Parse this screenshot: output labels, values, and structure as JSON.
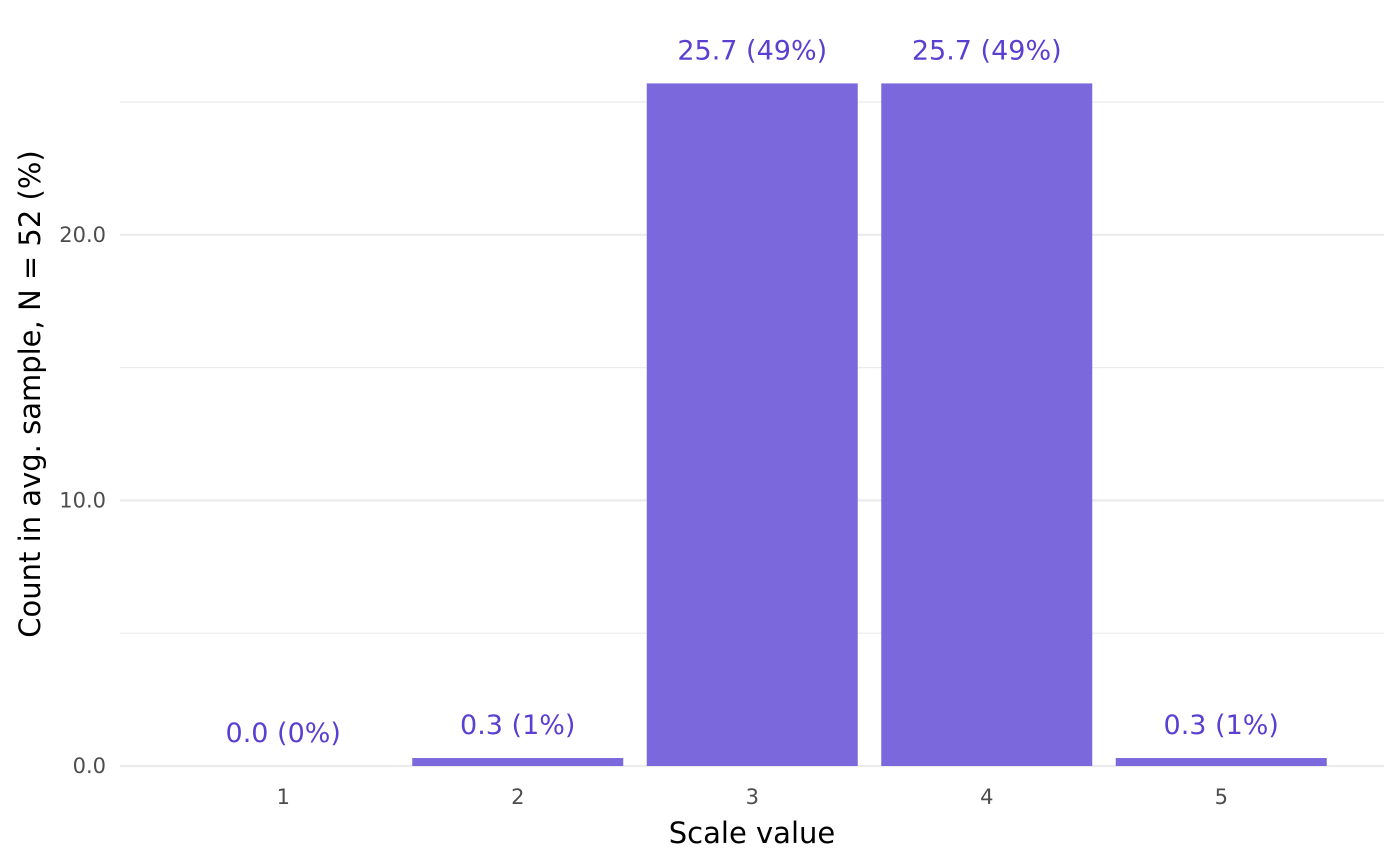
{
  "chart_data": {
    "type": "bar",
    "title": "",
    "xlabel": "Scale value",
    "ylabel": "Count in avg. sample, N = 52 (%)",
    "categories": [
      "1",
      "2",
      "3",
      "4",
      "5"
    ],
    "values": [
      0.0,
      0.3,
      25.7,
      25.7,
      0.3
    ],
    "data_labels": [
      "0.0 (0%)",
      "0.3 (1%)",
      "25.7 (49%)",
      "25.7 (49%)",
      "0.3 (1%)"
    ],
    "ylim": [
      0,
      25.7
    ],
    "y_ticks": [
      0,
      10,
      20
    ],
    "y_tick_labels": [
      "0.0",
      "10.0",
      "20.0"
    ],
    "y_minor_gridlines": [
      5,
      15,
      25
    ],
    "grid": true,
    "legend": "none",
    "colors": {
      "bar": "#7b68dd",
      "label": "#5a3fd0",
      "gridline": "#ebebeb"
    }
  }
}
